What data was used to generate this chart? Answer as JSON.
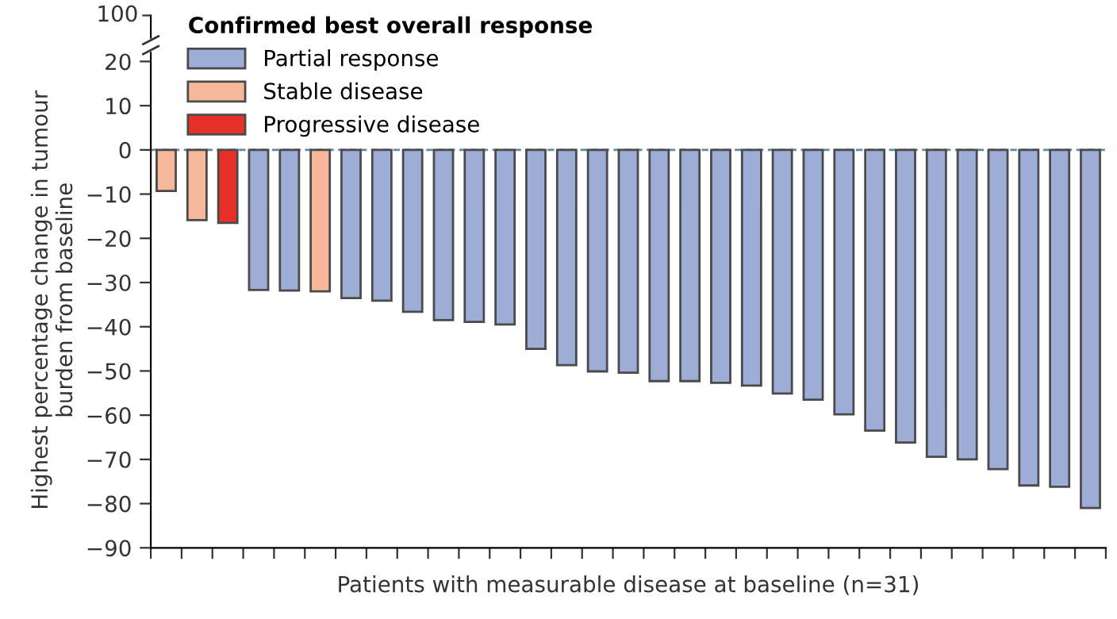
{
  "chart_data": {
    "type": "bar",
    "xlabel": "Patients with measurable disease at baseline (n=31)",
    "ylabel": "Highest percentage change in tumour\nburden from baseline",
    "legend_title": "Confirmed best overall response",
    "legend": "top left",
    "grid": false,
    "categories": [
      null,
      null,
      null,
      null,
      null,
      null,
      null,
      null,
      null,
      null,
      null,
      null,
      null,
      null,
      null,
      null,
      null,
      null,
      null,
      null,
      null,
      null,
      null,
      null,
      null,
      null,
      null,
      null,
      null,
      null,
      null
    ],
    "series": [
      {
        "name": "Partial response",
        "color": "#9dadd6",
        "values": [
          null,
          null,
          null,
          -31.7,
          -31.8,
          null,
          -33.5,
          -34.1,
          -36.6,
          -38.5,
          -38.9,
          -39.5,
          -45,
          -48.7,
          -50.1,
          -50.4,
          -52.3,
          -52.3,
          -52.7,
          -53.3,
          -55.1,
          -56.5,
          -59.8,
          -63.5,
          -66.2,
          -69.4,
          -70,
          -72.2,
          -75.9,
          -76.2,
          -81
        ]
      },
      {
        "name": "Stable disease",
        "color": "#f6b89a",
        "values": [
          -9.3,
          -15.9,
          null,
          null,
          null,
          -32,
          null,
          null,
          null,
          null,
          null,
          null,
          null,
          null,
          null,
          null,
          null,
          null,
          null,
          null,
          null,
          null,
          null,
          null,
          null,
          null,
          null,
          null,
          null,
          null,
          null
        ]
      },
      {
        "name": "Progressive disease",
        "color": "#e8302a",
        "values": [
          null,
          null,
          -16.5,
          null,
          null,
          null,
          null,
          null,
          null,
          null,
          null,
          null,
          null,
          null,
          null,
          null,
          null,
          null,
          null,
          null,
          null,
          null,
          null,
          null,
          null,
          null,
          null,
          null,
          null,
          null,
          null
        ]
      }
    ],
    "ylim": [
      -90,
      22
    ],
    "yticks": [
      -90,
      -80,
      -70,
      -60,
      -50,
      -40,
      -30,
      -20,
      -10,
      0,
      10,
      20
    ],
    "annotations": [
      "100"
    ],
    "ref_lines": [
      {
        "axis": "y",
        "value": 0,
        "color": "#5f8a9a",
        "line_style": "dashed"
      }
    ]
  }
}
